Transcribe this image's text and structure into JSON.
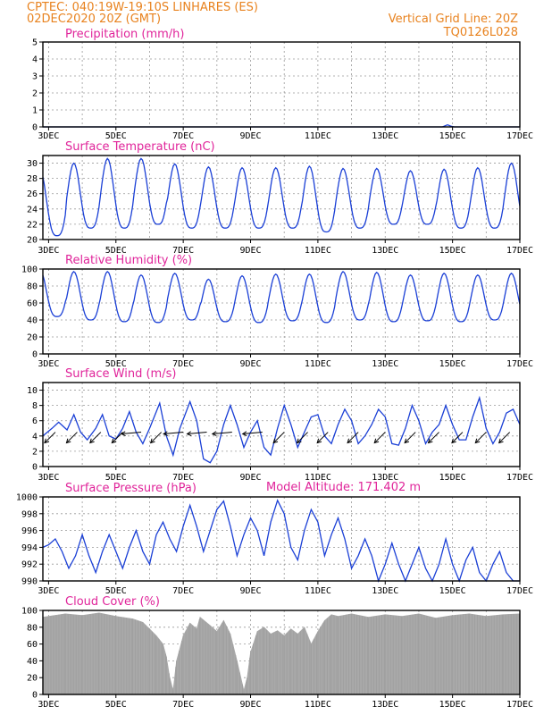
{
  "header": {
    "line1_left": "CPTEC:   040:19W-19:10S   LINHARES (ES)",
    "line2_left": "02DEC2020 20Z (GMT)",
    "line1_right": "Vertical Grid Line: 20Z",
    "line2_right": "TQ0126L028"
  },
  "model_altitude": "Model Altitude: 171.402 m",
  "colors": {
    "header": "#e8821e",
    "title": "#e0249a",
    "series": "#1a3fd6",
    "cloud": "#a9a9a9"
  },
  "chart_data": [
    {
      "type": "line",
      "title": "Precipitation (mm/h)",
      "x_start_day": 2.83,
      "x_end_day": 17.0,
      "xticks": [
        "3DEC",
        "5DEC",
        "7DEC",
        "9DEC",
        "11DEC",
        "13DEC",
        "15DEC",
        "17DEC"
      ],
      "xtick_days": [
        3,
        5,
        7,
        9,
        11,
        13,
        15,
        17
      ],
      "ylim": [
        0,
        5
      ],
      "yticks": [
        0,
        1,
        2,
        3,
        4,
        5
      ],
      "values": [
        {
          "day": 2.83,
          "value": 0
        },
        {
          "day": 14.7,
          "value": 0
        },
        {
          "day": 14.85,
          "value": 0.12
        },
        {
          "day": 14.95,
          "value": 0.05
        },
        {
          "day": 15.05,
          "value": 0
        },
        {
          "day": 17.0,
          "value": 0
        }
      ]
    },
    {
      "type": "line",
      "title": "Surface Temperature (nC)",
      "ylim": [
        20,
        31
      ],
      "yticks": [
        20,
        22,
        24,
        26,
        28,
        30
      ],
      "xticks": [
        "3DEC",
        "5DEC",
        "7DEC",
        "9DEC",
        "11DEC",
        "13DEC",
        "15DEC",
        "17DEC"
      ],
      "daily_max": [
        29.0,
        30.0,
        30.6,
        30.6,
        29.9,
        29.5,
        29.4,
        29.4,
        29.6,
        29.3,
        29.3,
        29.0,
        29.2,
        29.4,
        30.0
      ],
      "daily_min": [
        20.5,
        21.5,
        21.5,
        22.0,
        21.5,
        21.5,
        21.5,
        21.5,
        21.0,
        21.5,
        22.0,
        22.0,
        21.5,
        21.5,
        21.5
      ]
    },
    {
      "type": "line",
      "title": "Relative Humidity (%)",
      "ylim": [
        0,
        100
      ],
      "yticks": [
        0,
        20,
        40,
        60,
        80,
        100
      ],
      "xticks": [
        "3DEC",
        "5DEC",
        "7DEC",
        "9DEC",
        "11DEC",
        "13DEC",
        "15DEC",
        "17DEC"
      ],
      "daily_max": [
        98,
        97,
        97,
        93,
        95,
        88,
        92,
        94,
        94,
        97,
        96,
        93,
        95,
        93,
        95
      ],
      "daily_min": [
        44,
        40,
        38,
        37,
        40,
        38,
        37,
        39,
        37,
        40,
        38,
        39,
        38,
        40,
        40
      ]
    },
    {
      "type": "line",
      "title": "Surface Wind (m/s)",
      "ylim": [
        0,
        11
      ],
      "yticks": [
        0,
        2,
        4,
        6,
        8,
        10
      ],
      "xticks": [
        "3DEC",
        "5DEC",
        "7DEC",
        "9DEC",
        "11DEC",
        "13DEC",
        "15DEC",
        "17DEC"
      ],
      "points": [
        [
          2.83,
          4.0
        ],
        [
          3.1,
          5.0
        ],
        [
          3.3,
          5.8
        ],
        [
          3.55,
          4.8
        ],
        [
          3.75,
          6.8
        ],
        [
          3.95,
          4.5
        ],
        [
          4.15,
          3.5
        ],
        [
          4.4,
          5.0
        ],
        [
          4.6,
          6.8
        ],
        [
          4.8,
          4.0
        ],
        [
          5.0,
          3.6
        ],
        [
          5.2,
          5.0
        ],
        [
          5.4,
          7.2
        ],
        [
          5.6,
          4.5
        ],
        [
          5.8,
          3.0
        ],
        [
          6.0,
          5.0
        ],
        [
          6.3,
          8.3
        ],
        [
          6.5,
          4.0
        ],
        [
          6.7,
          1.5
        ],
        [
          6.9,
          5.0
        ],
        [
          7.2,
          8.5
        ],
        [
          7.4,
          6.0
        ],
        [
          7.6,
          1.0
        ],
        [
          7.8,
          0.5
        ],
        [
          8.0,
          2.0
        ],
        [
          8.2,
          5.5
        ],
        [
          8.4,
          8.0
        ],
        [
          8.6,
          5.5
        ],
        [
          8.8,
          2.5
        ],
        [
          9.0,
          4.5
        ],
        [
          9.2,
          6.0
        ],
        [
          9.4,
          2.5
        ],
        [
          9.6,
          1.5
        ],
        [
          9.8,
          5.0
        ],
        [
          10.0,
          8.0
        ],
        [
          10.2,
          5.5
        ],
        [
          10.4,
          2.5
        ],
        [
          10.6,
          4.5
        ],
        [
          10.8,
          6.5
        ],
        [
          11.0,
          6.8
        ],
        [
          11.2,
          4.0
        ],
        [
          11.4,
          3.0
        ],
        [
          11.6,
          5.5
        ],
        [
          11.8,
          7.5
        ],
        [
          12.0,
          6.0
        ],
        [
          12.2,
          3.0
        ],
        [
          12.4,
          4.0
        ],
        [
          12.6,
          5.5
        ],
        [
          12.8,
          7.5
        ],
        [
          13.0,
          6.5
        ],
        [
          13.2,
          3.0
        ],
        [
          13.4,
          2.8
        ],
        [
          13.6,
          5.0
        ],
        [
          13.8,
          8.0
        ],
        [
          14.0,
          6.0
        ],
        [
          14.2,
          3.0
        ],
        [
          14.4,
          4.5
        ],
        [
          14.6,
          5.5
        ],
        [
          14.8,
          8.0
        ],
        [
          15.0,
          5.5
        ],
        [
          15.2,
          3.5
        ],
        [
          15.4,
          3.5
        ],
        [
          15.6,
          6.5
        ],
        [
          15.8,
          9.0
        ],
        [
          16.0,
          5.0
        ],
        [
          16.2,
          3.0
        ],
        [
          16.4,
          4.5
        ],
        [
          16.6,
          7.0
        ],
        [
          16.8,
          7.5
        ],
        [
          17.0,
          5.5
        ]
      ],
      "wind_vectors": [
        {
          "day": 3.2,
          "direction": "NE"
        },
        {
          "day": 3.85,
          "direction": "NE"
        },
        {
          "day": 4.55,
          "direction": "NE"
        },
        {
          "day": 5.2,
          "direction": "NE"
        },
        {
          "day": 5.75,
          "direction": "E"
        },
        {
          "day": 6.35,
          "direction": "NE"
        },
        {
          "day": 7.0,
          "direction": "E"
        },
        {
          "day": 7.7,
          "direction": "E"
        },
        {
          "day": 8.45,
          "direction": "E"
        },
        {
          "day": 9.35,
          "direction": "E"
        },
        {
          "day": 10.0,
          "direction": "NE"
        },
        {
          "day": 10.7,
          "direction": "NE"
        },
        {
          "day": 11.3,
          "direction": "NE"
        },
        {
          "day": 12.2,
          "direction": "NE"
        },
        {
          "day": 13.0,
          "direction": "NE"
        },
        {
          "day": 13.9,
          "direction": "NE"
        },
        {
          "day": 14.6,
          "direction": "NE"
        },
        {
          "day": 15.3,
          "direction": "NE"
        },
        {
          "day": 16.0,
          "direction": "NE"
        },
        {
          "day": 16.7,
          "direction": "NE"
        }
      ]
    },
    {
      "type": "line",
      "title": "Surface Pressure (hPa)",
      "ylim": [
        990,
        1000
      ],
      "yticks": [
        990,
        992,
        994,
        996,
        998,
        1000
      ],
      "xticks": [
        "3DEC",
        "5DEC",
        "7DEC",
        "9DEC",
        "11DEC",
        "13DEC",
        "15DEC",
        "17DEC"
      ],
      "points": [
        [
          2.83,
          994.0
        ],
        [
          3.0,
          994.3
        ],
        [
          3.2,
          995.0
        ],
        [
          3.4,
          993.5
        ],
        [
          3.6,
          991.5
        ],
        [
          3.8,
          993.0
        ],
        [
          4.0,
          995.5
        ],
        [
          4.2,
          993.0
        ],
        [
          4.4,
          991.0
        ],
        [
          4.6,
          993.5
        ],
        [
          4.8,
          995.5
        ],
        [
          5.0,
          993.5
        ],
        [
          5.2,
          991.5
        ],
        [
          5.4,
          994.0
        ],
        [
          5.6,
          996.0
        ],
        [
          5.8,
          993.5
        ],
        [
          6.0,
          992.0
        ],
        [
          6.2,
          995.5
        ],
        [
          6.4,
          997.0
        ],
        [
          6.6,
          995.0
        ],
        [
          6.8,
          993.5
        ],
        [
          7.0,
          996.5
        ],
        [
          7.2,
          999.0
        ],
        [
          7.4,
          996.5
        ],
        [
          7.6,
          993.5
        ],
        [
          7.8,
          996.0
        ],
        [
          8.0,
          998.5
        ],
        [
          8.2,
          999.5
        ],
        [
          8.4,
          996.5
        ],
        [
          8.6,
          993.0
        ],
        [
          8.8,
          995.5
        ],
        [
          9.0,
          997.5
        ],
        [
          9.2,
          996.0
        ],
        [
          9.4,
          993.0
        ],
        [
          9.6,
          997.0
        ],
        [
          9.8,
          999.6
        ],
        [
          10.0,
          998.0
        ],
        [
          10.2,
          994.0
        ],
        [
          10.4,
          992.5
        ],
        [
          10.6,
          996.0
        ],
        [
          10.8,
          998.5
        ],
        [
          11.0,
          997.0
        ],
        [
          11.2,
          993.0
        ],
        [
          11.4,
          995.5
        ],
        [
          11.6,
          997.5
        ],
        [
          11.8,
          995.0
        ],
        [
          12.0,
          991.5
        ],
        [
          12.2,
          993.0
        ],
        [
          12.4,
          995.0
        ],
        [
          12.6,
          993.0
        ],
        [
          12.8,
          989.8
        ],
        [
          13.0,
          992.0
        ],
        [
          13.2,
          994.5
        ],
        [
          13.4,
          992.0
        ],
        [
          13.6,
          989.5
        ],
        [
          13.8,
          992.0
        ],
        [
          14.0,
          994.0
        ],
        [
          14.2,
          991.5
        ],
        [
          14.4,
          989.5
        ],
        [
          14.6,
          992.0
        ],
        [
          14.8,
          995.0
        ],
        [
          15.0,
          992.0
        ],
        [
          15.2,
          989.5
        ],
        [
          15.4,
          992.5
        ],
        [
          15.6,
          994.0
        ],
        [
          15.8,
          991.0
        ],
        [
          16.0,
          989.5
        ],
        [
          16.2,
          992.0
        ],
        [
          16.4,
          993.5
        ],
        [
          16.6,
          991.0
        ],
        [
          16.8,
          989.5
        ],
        [
          17.0,
          990.0
        ]
      ]
    },
    {
      "type": "area",
      "title": "Cloud Cover (%)",
      "ylim": [
        0,
        100
      ],
      "yticks": [
        0,
        20,
        40,
        60,
        80,
        100
      ],
      "xticks": [
        "3DEC",
        "5DEC",
        "7DEC",
        "9DEC",
        "11DEC",
        "13DEC",
        "15DEC",
        "17DEC"
      ],
      "points": [
        [
          2.83,
          92
        ],
        [
          3.5,
          96
        ],
        [
          4.0,
          94
        ],
        [
          4.5,
          97
        ],
        [
          5.0,
          93
        ],
        [
          5.5,
          90
        ],
        [
          5.8,
          86
        ],
        [
          6.0,
          78
        ],
        [
          6.2,
          70
        ],
        [
          6.4,
          60
        ],
        [
          6.5,
          45
        ],
        [
          6.6,
          20
        ],
        [
          6.7,
          5
        ],
        [
          6.8,
          40
        ],
        [
          7.0,
          70
        ],
        [
          7.2,
          85
        ],
        [
          7.4,
          78
        ],
        [
          7.5,
          92
        ],
        [
          7.8,
          82
        ],
        [
          8.0,
          75
        ],
        [
          8.2,
          88
        ],
        [
          8.4,
          72
        ],
        [
          8.6,
          40
        ],
        [
          8.8,
          5
        ],
        [
          8.9,
          20
        ],
        [
          9.0,
          50
        ],
        [
          9.2,
          75
        ],
        [
          9.4,
          80
        ],
        [
          9.6,
          72
        ],
        [
          9.8,
          76
        ],
        [
          10.0,
          70
        ],
        [
          10.2,
          78
        ],
        [
          10.4,
          72
        ],
        [
          10.6,
          80
        ],
        [
          10.8,
          60
        ],
        [
          11.0,
          75
        ],
        [
          11.2,
          88
        ],
        [
          11.4,
          95
        ],
        [
          11.6,
          93
        ],
        [
          12.0,
          96
        ],
        [
          12.5,
          92
        ],
        [
          13.0,
          95
        ],
        [
          13.5,
          93
        ],
        [
          14.0,
          96
        ],
        [
          14.5,
          91
        ],
        [
          15.0,
          94
        ],
        [
          15.5,
          96
        ],
        [
          16.0,
          93
        ],
        [
          16.5,
          95
        ],
        [
          17.0,
          96
        ]
      ]
    }
  ]
}
